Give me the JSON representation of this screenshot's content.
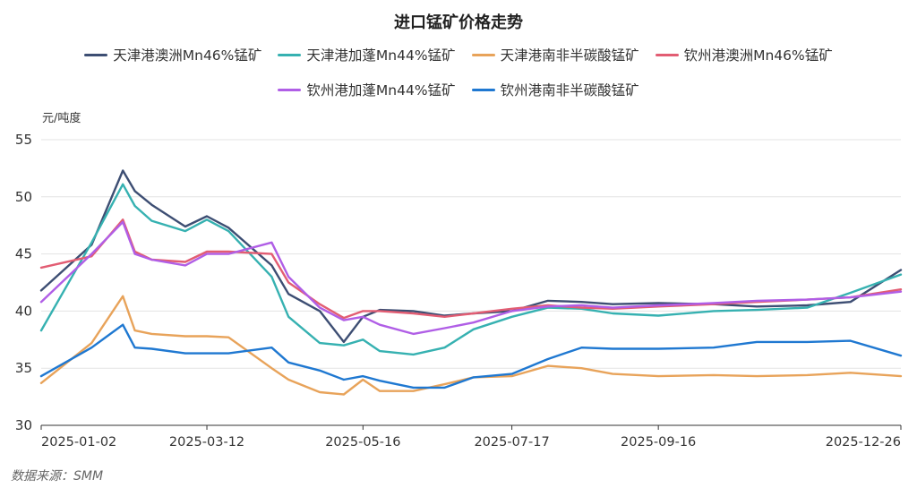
{
  "chart_data": {
    "type": "line",
    "title": "进口锰矿价格走势",
    "ylabel": "元/吨度",
    "source": "数据来源：SMM",
    "ylim": [
      30,
      55
    ],
    "yticks": [
      30,
      35,
      40,
      45,
      50,
      55
    ],
    "xticks": [
      "2025-01-02",
      "2025-03-12",
      "2025-05-16",
      "2025-07-17",
      "2025-09-16",
      "2025-12-26"
    ],
    "x": [
      "2025-01-02",
      "2025-01-23",
      "2025-02-05",
      "2025-02-10",
      "2025-02-17",
      "2025-03-03",
      "2025-03-12",
      "2025-03-21",
      "2025-04-08",
      "2025-04-15",
      "2025-04-28",
      "2025-05-08",
      "2025-05-16",
      "2025-05-23",
      "2025-06-06",
      "2025-06-19",
      "2025-07-01",
      "2025-07-17",
      "2025-08-01",
      "2025-08-15",
      "2025-08-28",
      "2025-09-16",
      "2025-10-09",
      "2025-10-27",
      "2025-11-17",
      "2025-12-05",
      "2025-12-26"
    ],
    "series": [
      {
        "name": "天津港澳洲Mn46%锰矿",
        "color": "#3d4e73",
        "values": [
          41.8,
          45.8,
          52.3,
          50.5,
          49.3,
          47.4,
          48.3,
          47.3,
          44.0,
          41.5,
          40.0,
          37.3,
          39.5,
          40.1,
          40.0,
          39.6,
          39.8,
          40.0,
          40.9,
          40.8,
          40.6,
          40.7,
          40.6,
          40.4,
          40.5,
          40.8,
          43.6
        ]
      },
      {
        "name": "天津港加蓬Mn44%锰矿",
        "color": "#36b1b1",
        "values": [
          38.3,
          46.0,
          51.1,
          49.2,
          47.9,
          47.0,
          48.0,
          47.0,
          43.0,
          39.5,
          37.2,
          37.0,
          37.5,
          36.5,
          36.2,
          36.8,
          38.4,
          39.5,
          40.3,
          40.2,
          39.8,
          39.6,
          40.0,
          40.1,
          40.3,
          41.6,
          43.2
        ]
      },
      {
        "name": "天津港南非半碳酸锰矿",
        "color": "#e8a35a",
        "values": [
          33.7,
          37.2,
          41.3,
          38.3,
          38.0,
          37.8,
          37.8,
          37.7,
          35.0,
          34.0,
          32.9,
          32.7,
          34.0,
          33.0,
          33.0,
          33.6,
          34.2,
          34.3,
          35.2,
          35.0,
          34.5,
          34.3,
          34.4,
          34.3,
          34.4,
          34.6,
          34.3
        ]
      },
      {
        "name": "钦州港澳洲Mn46%锰矿",
        "color": "#e25d73",
        "values": [
          43.8,
          44.8,
          48.0,
          45.2,
          44.5,
          44.3,
          45.2,
          45.2,
          45.0,
          42.5,
          40.6,
          39.4,
          40.0,
          40.0,
          39.8,
          39.5,
          39.8,
          40.2,
          40.5,
          40.3,
          40.2,
          40.4,
          40.6,
          40.8,
          41.0,
          41.2,
          41.9
        ]
      },
      {
        "name": "钦州港加蓬Mn44%锰矿",
        "color": "#b05ee6",
        "values": [
          40.8,
          45.0,
          47.8,
          45.0,
          44.5,
          44.0,
          45.0,
          45.0,
          46.0,
          43.0,
          40.3,
          39.2,
          39.5,
          38.8,
          38.0,
          38.5,
          39.0,
          40.0,
          40.4,
          40.5,
          40.3,
          40.5,
          40.7,
          40.9,
          41.0,
          41.2,
          41.7
        ]
      },
      {
        "name": "钦州港南非半碳酸锰矿",
        "color": "#1f78d1",
        "values": [
          34.3,
          36.8,
          38.8,
          36.8,
          36.7,
          36.3,
          36.3,
          36.3,
          36.8,
          35.5,
          34.8,
          34.0,
          34.3,
          33.9,
          33.3,
          33.3,
          34.2,
          34.5,
          35.8,
          36.8,
          36.7,
          36.7,
          36.8,
          37.3,
          37.3,
          37.4,
          36.1
        ]
      }
    ]
  }
}
